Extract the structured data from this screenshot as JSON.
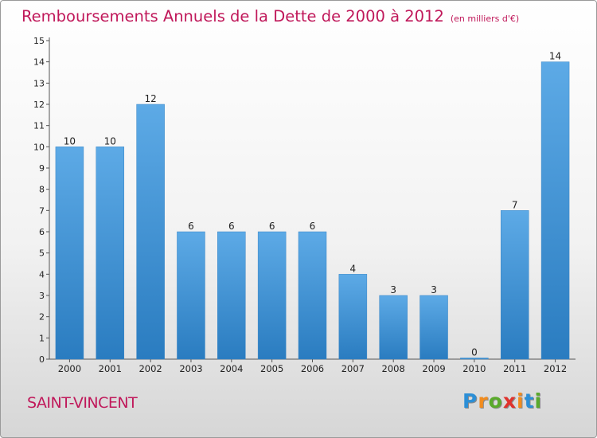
{
  "title": "Remboursements Annuels de la Dette de 2000 à 2012",
  "unit_note": "(en milliers d'€)",
  "town": "SAINT-VINCENT",
  "logo": {
    "text": "Proxiti",
    "letter_colors": [
      "#2c8fd6",
      "#f28c1e",
      "#5aaa2c",
      "#e0322c",
      "#f28c1e",
      "#2c8fd6",
      "#5aaa2c"
    ]
  },
  "colors": {
    "bar_light": "#5daae6",
    "bar_dark": "#2a7cc0",
    "title": "#c0185a"
  },
  "chart_data": {
    "type": "bar",
    "categories": [
      "2000",
      "2001",
      "2002",
      "2003",
      "2004",
      "2005",
      "2006",
      "2007",
      "2008",
      "2009",
      "2010",
      "2011",
      "2012"
    ],
    "values": [
      10,
      10,
      12,
      6,
      6,
      6,
      6,
      4,
      3,
      3,
      0,
      7,
      14
    ],
    "ylim": [
      0,
      15
    ],
    "yticks": [
      "0",
      "1",
      "2",
      "3",
      "4",
      "5",
      "6",
      "7",
      "8",
      "9",
      "10",
      "11",
      "12",
      "13",
      "14",
      "15"
    ],
    "grid": false
  }
}
